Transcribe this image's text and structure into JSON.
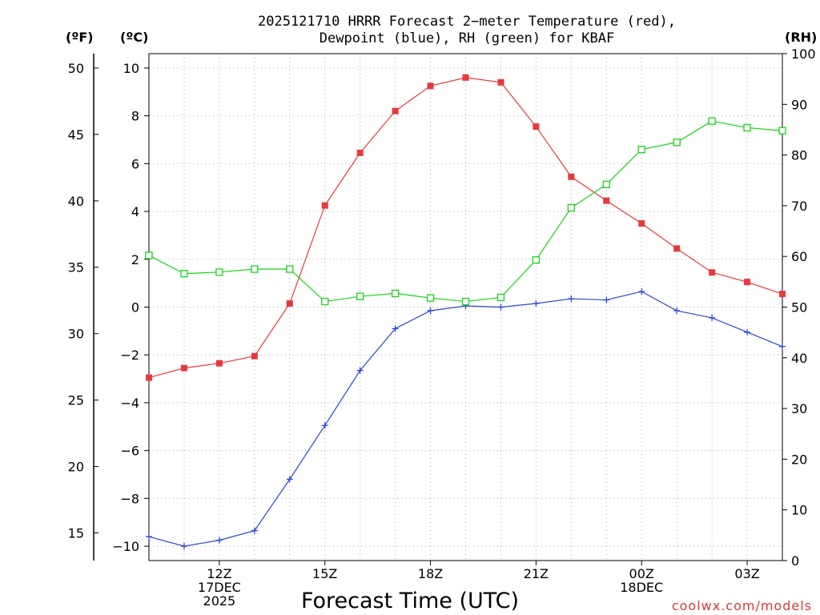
{
  "header": {
    "title_line1": "2025121710 HRRR Forecast 2−meter Temperature (red),",
    "title_line2": "Dewpoint (blue), RH (green) for KBAF",
    "unit_f": "(ºF)",
    "unit_c": "(ºC)",
    "unit_rh": "(RH)"
  },
  "footer": {
    "watermark": "coolwx.com/models"
  },
  "colors": {
    "temperature": "#e8393a",
    "dewpoint": "#2b45d8",
    "rh": "#18d418",
    "grid": "#a8a8a8",
    "watermark": "#d83838"
  },
  "chart_data": {
    "type": "line",
    "title": "2025121710 HRRR Forecast 2-meter Temperature (red), Dewpoint (blue), RH (green) for KBAF",
    "xlabel": "Forecast Time (UTC)",
    "x_hours": [
      10,
      11,
      12,
      13,
      14,
      15,
      16,
      17,
      18,
      19,
      20,
      21,
      22,
      23,
      24,
      25,
      26,
      27,
      28
    ],
    "xlim": [
      10,
      28
    ],
    "x_ticks": [
      {
        "hour": 12,
        "lines": [
          "12Z",
          "17DEC",
          "2025"
        ]
      },
      {
        "hour": 15,
        "lines": [
          "15Z"
        ]
      },
      {
        "hour": 18,
        "lines": [
          "18Z"
        ]
      },
      {
        "hour": 21,
        "lines": [
          "21Z"
        ]
      },
      {
        "hour": 24,
        "lines": [
          "00Z",
          "18DEC"
        ]
      },
      {
        "hour": 27,
        "lines": [
          "03Z"
        ]
      }
    ],
    "left_axis_c": {
      "ylim": [
        -10.6,
        10.6
      ],
      "ticks": [
        10,
        8,
        6,
        4,
        2,
        0,
        -2,
        -4,
        -6,
        -8,
        -10
      ],
      "tick_labels": [
        "10",
        "8",
        "6",
        "4",
        "2",
        "0",
        "−2",
        "−4",
        "−6",
        "−8",
        "−10"
      ]
    },
    "left_axis_f": {
      "ticks": [
        50,
        45,
        40,
        35,
        30,
        25,
        20,
        15
      ]
    },
    "right_axis_rh": {
      "ylim": [
        0,
        100
      ],
      "ticks": [
        100,
        90,
        80,
        70,
        60,
        50,
        40,
        30,
        20,
        10,
        0
      ]
    },
    "series": [
      {
        "name": "Temperature",
        "unit": "C",
        "marker": "filled-square",
        "values": [
          -2.95,
          -2.55,
          -2.35,
          -2.05,
          0.15,
          4.25,
          6.45,
          8.2,
          9.25,
          9.6,
          9.4,
          7.55,
          5.45,
          4.45,
          3.5,
          2.45,
          1.45,
          1.05,
          0.55
        ]
      },
      {
        "name": "Dewpoint",
        "unit": "C",
        "marker": "plus",
        "values": [
          -9.6,
          -10.0,
          -9.75,
          -9.35,
          -7.2,
          -4.95,
          -2.65,
          -0.9,
          -0.15,
          0.05,
          0.0,
          0.15,
          0.35,
          0.3,
          0.65,
          -0.15,
          -0.45,
          -1.05,
          -1.65
        ]
      },
      {
        "name": "RH",
        "unit": "%",
        "marker": "open-square",
        "values": [
          60.2,
          56.6,
          56.9,
          57.5,
          57.5,
          51.1,
          52.1,
          52.7,
          51.8,
          51.1,
          51.9,
          59.3,
          69.6,
          74.2,
          81.1,
          82.5,
          86.7,
          85.4,
          84.8
        ]
      }
    ]
  }
}
